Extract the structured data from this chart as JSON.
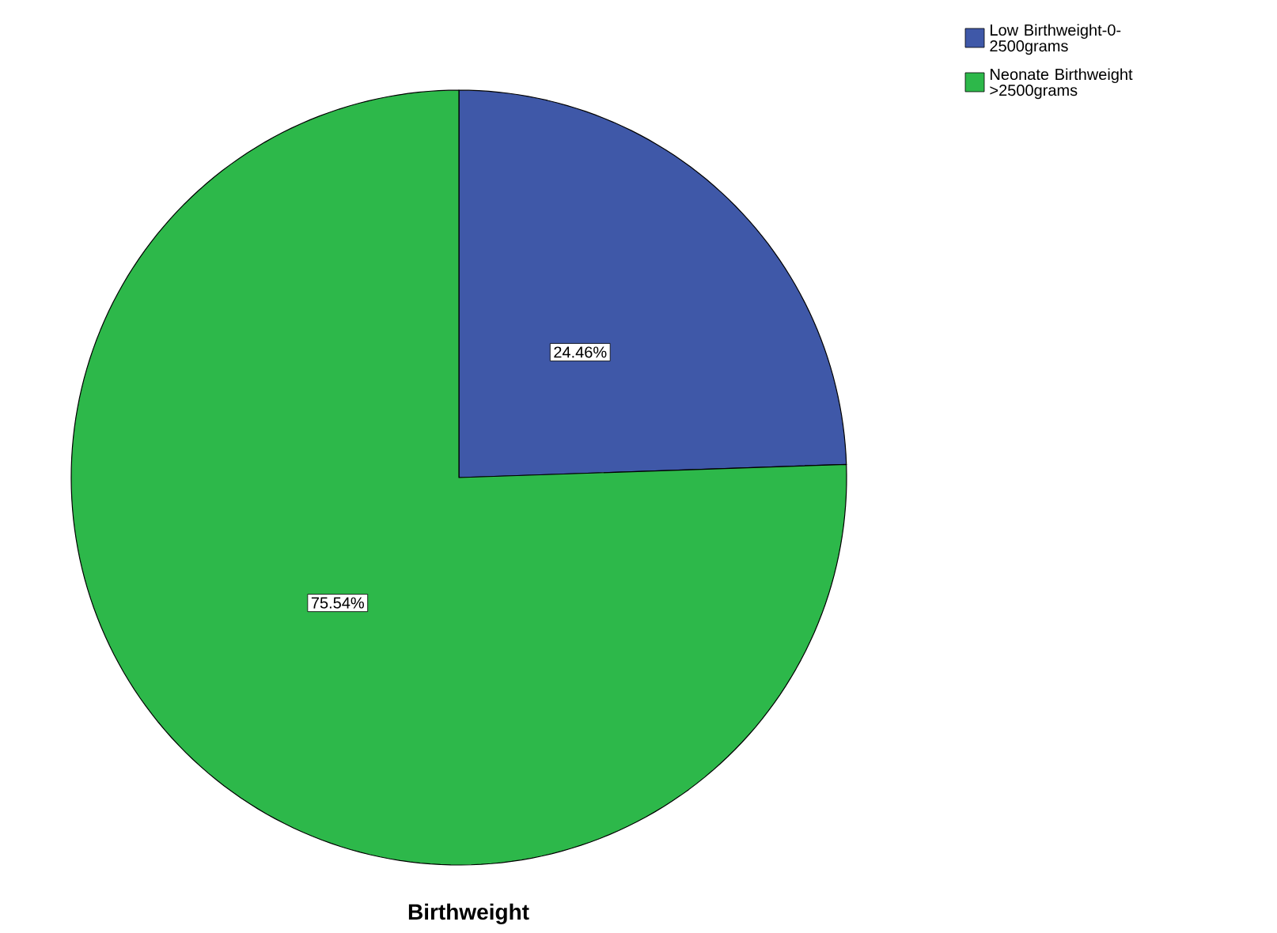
{
  "chart_data": {
    "type": "pie",
    "title": "Birthweight",
    "categories": [
      "Low Birthweight-0-2500grams",
      "Neonate Birthweight >2500grams"
    ],
    "values": [
      24.46,
      75.54
    ],
    "colors": [
      "#3f58a8",
      "#2db84a"
    ],
    "value_labels": [
      "24.46%",
      "75.54%"
    ],
    "legend": "top right"
  }
}
